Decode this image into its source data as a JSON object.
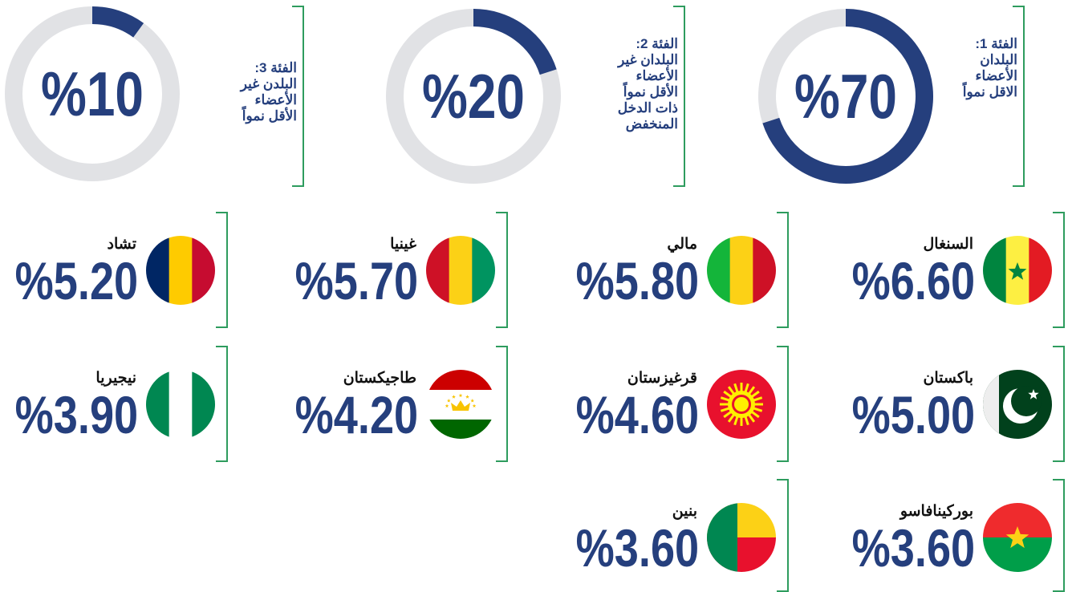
{
  "groups": [
    {
      "title": [
        "الفئة 1:",
        "البلدان",
        "الأعضاء",
        "الاقل نمواً"
      ],
      "value": 70,
      "label": "%70"
    },
    {
      "title": [
        "الفئة 2:",
        "البلدان غير",
        "الأعضاء",
        "الأقل نمواً",
        "ذات الدخل",
        "المنخفض"
      ],
      "value": 20,
      "label": "%20"
    },
    {
      "title": [
        "الفئة 3:",
        "البلدن غير",
        "الأعضاء",
        "الأقل نمواً"
      ],
      "value": 10,
      "label": "%10"
    }
  ],
  "countries": [
    {
      "name": "السنغال",
      "value": "%6.60"
    },
    {
      "name": "مالي",
      "value": "%5.80"
    },
    {
      "name": "غينيا",
      "value": "%5.70"
    },
    {
      "name": "تشاد",
      "value": "%5.20"
    },
    {
      "name": "باكستان",
      "value": "%5.00"
    },
    {
      "name": "قرغيزستان",
      "value": "%4.60"
    },
    {
      "name": "طاجيكستان",
      "value": "%4.20"
    },
    {
      "name": "نيجيريا",
      "value": "%3.90"
    },
    {
      "name": "بوركينافاسو",
      "value": "%3.60"
    },
    {
      "name": "بنين",
      "value": "%3.60"
    }
  ]
}
